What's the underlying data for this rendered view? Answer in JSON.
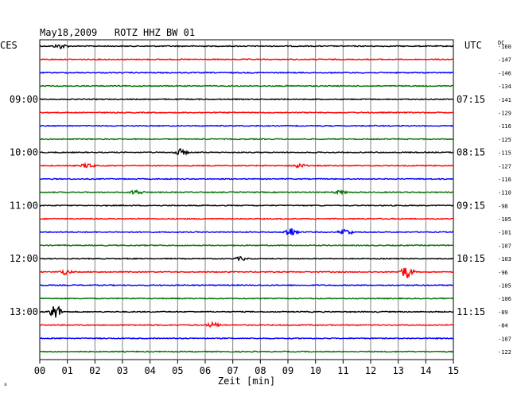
{
  "chart_data": {
    "type": "line",
    "title": "May18,2009   ROTZ HHZ BW 01",
    "left_axis_label": "CES",
    "right_axis_label": "UTC",
    "corner_label": "DC",
    "xlabel": "Zeit [min]",
    "xlim": [
      0,
      15
    ],
    "x_ticks": [
      "00",
      "01",
      "02",
      "03",
      "04",
      "05",
      "06",
      "07",
      "08",
      "09",
      "10",
      "11",
      "12",
      "13",
      "14",
      "15"
    ],
    "grid": true,
    "left_time_labels": [
      {
        "trace": 4,
        "text": "09:00"
      },
      {
        "trace": 8,
        "text": "10:00"
      },
      {
        "trace": 12,
        "text": "11:00"
      },
      {
        "trace": 16,
        "text": "12:00"
      },
      {
        "trace": 20,
        "text": "13:00"
      }
    ],
    "right_time_labels": [
      {
        "trace": 4,
        "text": "07:15"
      },
      {
        "trace": 8,
        "text": "08:15"
      },
      {
        "trace": 12,
        "text": "09:15"
      },
      {
        "trace": 16,
        "text": "10:15"
      },
      {
        "trace": 20,
        "text": "11:15"
      }
    ],
    "trace_colors": [
      "#000000",
      "#ff0000",
      "#0000ff",
      "#007000"
    ],
    "dc_offsets": [
      "-160",
      "-147",
      "-146",
      "-134",
      "-141",
      "-129",
      "-116",
      "-125",
      "-115",
      "-127",
      "-116",
      "-110",
      "-98",
      "-105",
      "-101",
      "-107",
      "-103",
      "-96",
      "-105",
      "-106",
      "-89",
      "-84",
      "-107",
      "-122"
    ],
    "events": [
      {
        "trace": 0,
        "minute": 0.75,
        "amplitude": 3
      },
      {
        "trace": 8,
        "minute": 5.1,
        "amplitude": 4
      },
      {
        "trace": 9,
        "minute": 1.75,
        "amplitude": 3
      },
      {
        "trace": 9,
        "minute": 9.4,
        "amplitude": 3
      },
      {
        "trace": 11,
        "minute": 3.5,
        "amplitude": 3
      },
      {
        "trace": 11,
        "minute": 10.9,
        "amplitude": 2
      },
      {
        "trace": 14,
        "minute": 9.1,
        "amplitude": 6
      },
      {
        "trace": 14,
        "minute": 11.1,
        "amplitude": 4
      },
      {
        "trace": 16,
        "minute": 7.3,
        "amplitude": 2
      },
      {
        "trace": 17,
        "minute": 0.9,
        "amplitude": 3
      },
      {
        "trace": 17,
        "minute": 13.3,
        "amplitude": 8
      },
      {
        "trace": 20,
        "minute": 0.55,
        "amplitude": 10
      },
      {
        "trace": 21,
        "minute": 6.3,
        "amplitude": 3
      }
    ]
  }
}
